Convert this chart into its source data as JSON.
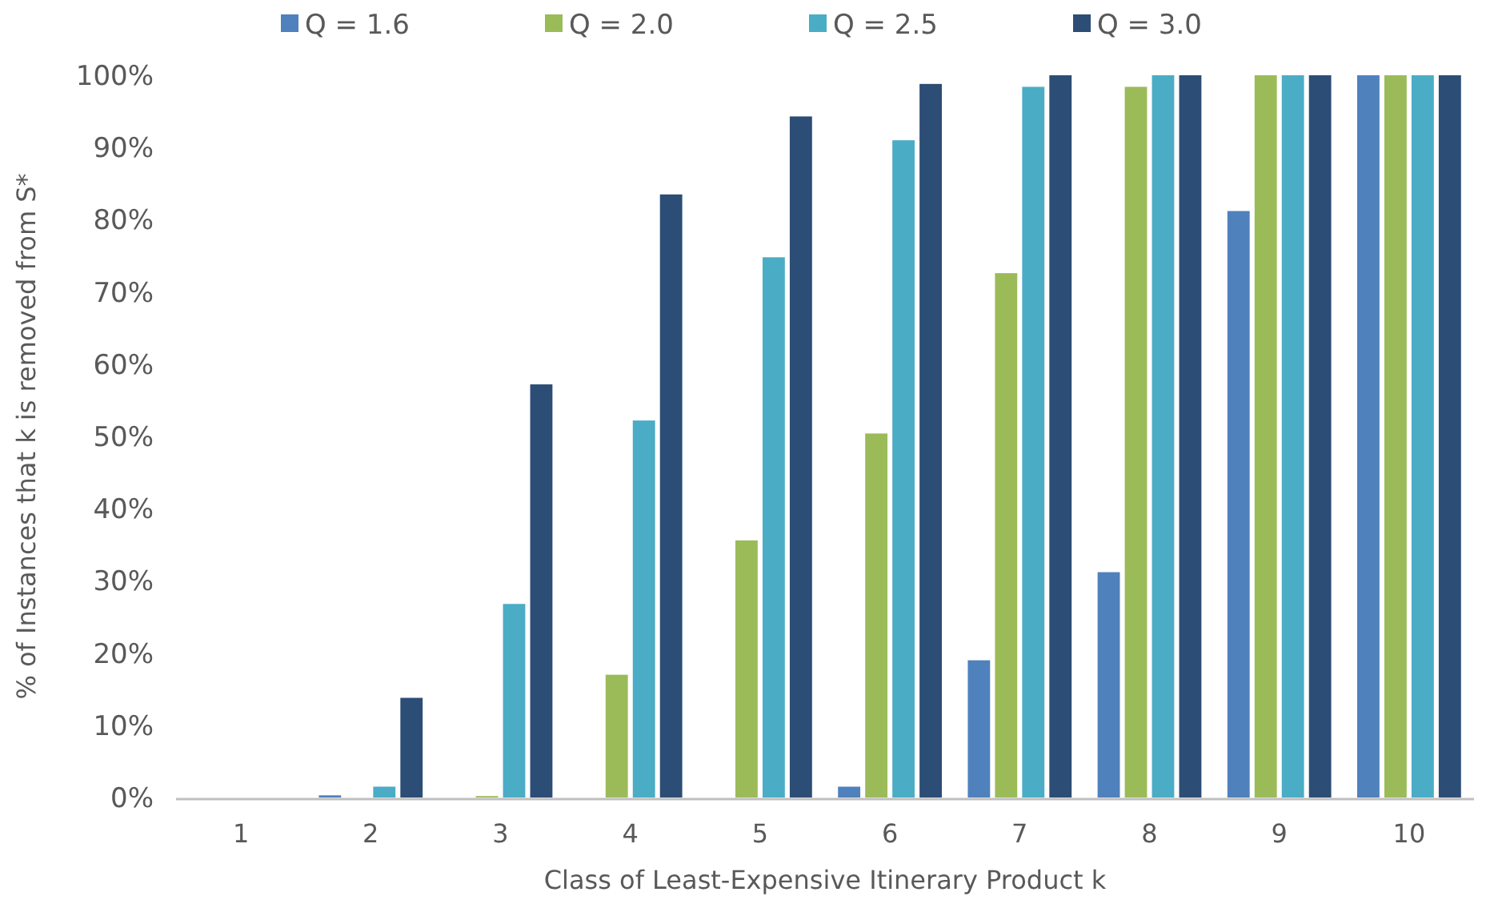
{
  "chart_data": {
    "type": "bar",
    "xlabel": "Class of Least-Expensive Itinerary Product k",
    "ylabel": "% of Instances that k is removed from S*",
    "categories": [
      "1",
      "2",
      "3",
      "4",
      "5",
      "6",
      "7",
      "8",
      "9",
      "10"
    ],
    "series": [
      {
        "name": "Q = 1.6",
        "color": "#4f81bd",
        "values": [
          0,
          0.3,
          0,
          0,
          0,
          1.5,
          19,
          31.2,
          81.2,
          100
        ]
      },
      {
        "name": "Q = 2.0",
        "color": "#9bbb59",
        "values": [
          0,
          0,
          0.2,
          17,
          35.6,
          50.4,
          72.6,
          98.4,
          100,
          100
        ]
      },
      {
        "name": "Q = 2.5",
        "color": "#4bacc6",
        "values": [
          0,
          1.5,
          26.8,
          52.2,
          74.8,
          91,
          98.4,
          100,
          100,
          100
        ]
      },
      {
        "name": "Q = 3.0",
        "color": "#2c4d75",
        "values": [
          0,
          13.8,
          57.2,
          83.5,
          94.3,
          98.8,
          100,
          100,
          100,
          100
        ]
      }
    ],
    "ylim": [
      0,
      100
    ],
    "yticks": [
      {
        "value": 0,
        "label": "0%"
      },
      {
        "value": 10,
        "label": "10%"
      },
      {
        "value": 20,
        "label": "20%"
      },
      {
        "value": 30,
        "label": "30%"
      },
      {
        "value": 40,
        "label": "40%"
      },
      {
        "value": 50,
        "label": "50%"
      },
      {
        "value": 60,
        "label": "60%"
      },
      {
        "value": 70,
        "label": "70%"
      },
      {
        "value": 80,
        "label": "80%"
      },
      {
        "value": 90,
        "label": "90%"
      },
      {
        "value": 100,
        "label": "100%"
      }
    ],
    "grid": false,
    "legend": "top"
  }
}
